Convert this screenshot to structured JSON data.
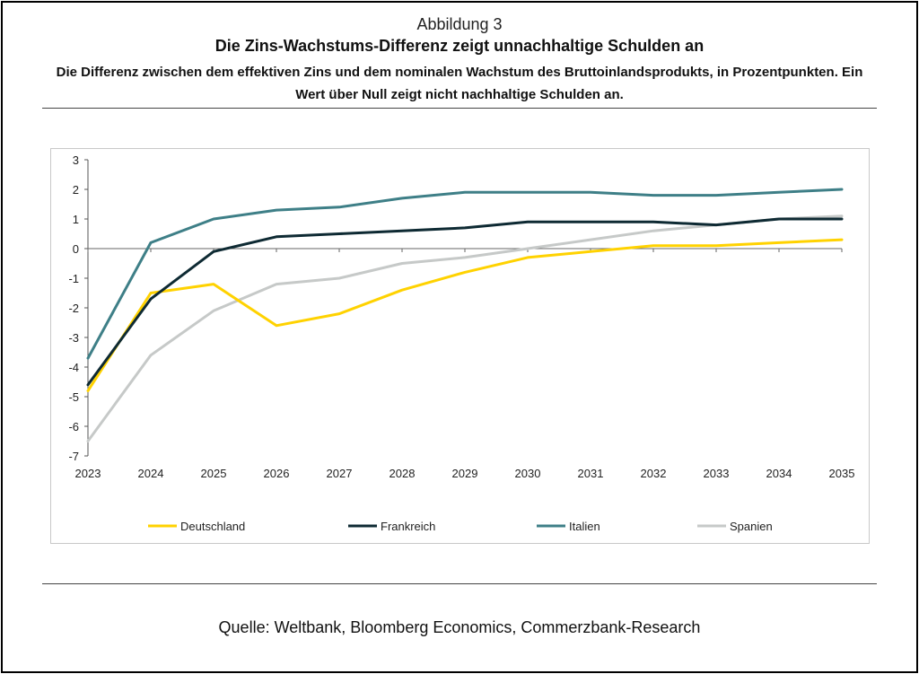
{
  "figure_label": "Abbildung 3",
  "title": "Die Zins-Wachstums-Differenz zeigt unnachhaltige Schulden an",
  "subtitle": "Die Differenz zwischen dem effektiven Zins und dem nominalen Wachstum des Bruttoinlandsprodukts, in Prozentpunkten. Ein Wert über Null zeigt nicht nachhaltige Schulden an.",
  "source": "Quelle: Weltbank, Bloomberg Economics, Commerzbank-Research",
  "chart_data": {
    "type": "line",
    "title": "",
    "xlabel": "",
    "ylabel": "",
    "x": [
      "2023",
      "2024",
      "2025",
      "2026",
      "2027",
      "2028",
      "2029",
      "2030",
      "2031",
      "2032",
      "2033",
      "2034",
      "2035"
    ],
    "ylim": [
      -7,
      3
    ],
    "yticks": [
      3,
      2,
      1,
      0,
      -1,
      -2,
      -3,
      -4,
      -5,
      -6,
      -7
    ],
    "grid": false,
    "legend_position": "bottom",
    "series": [
      {
        "name": "Deutschland",
        "color": "#FFD200",
        "values": [
          -4.8,
          -1.5,
          -1.2,
          -2.6,
          -2.2,
          -1.4,
          -0.8,
          -0.3,
          -0.1,
          0.1,
          0.1,
          0.2,
          0.3
        ]
      },
      {
        "name": "Frankreich",
        "color": "#0E2A33",
        "values": [
          -4.6,
          -1.7,
          -0.1,
          0.4,
          0.5,
          0.6,
          0.7,
          0.9,
          0.9,
          0.9,
          0.8,
          1.0,
          1.0
        ]
      },
      {
        "name": "Italien",
        "color": "#3E7F87",
        "values": [
          -3.7,
          0.2,
          1.0,
          1.3,
          1.4,
          1.7,
          1.9,
          1.9,
          1.9,
          1.8,
          1.8,
          1.9,
          2.0
        ]
      },
      {
        "name": "Spanien",
        "color": "#C6C9C8",
        "values": [
          -6.5,
          -3.6,
          -2.1,
          -1.2,
          -1.0,
          -0.5,
          -0.3,
          0.0,
          0.3,
          0.6,
          0.8,
          1.0,
          1.1
        ]
      }
    ]
  }
}
